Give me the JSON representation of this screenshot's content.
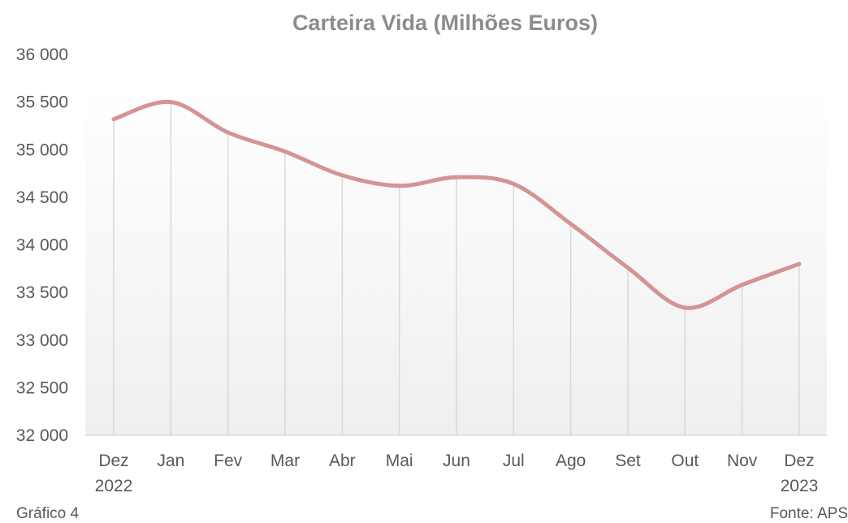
{
  "chart_data": {
    "type": "line",
    "title": "Carteira Vida (Milhões Euros)",
    "xlabel": "",
    "ylabel": "",
    "categories": [
      [
        "Dez",
        "2022"
      ],
      [
        "Jan"
      ],
      [
        "Fev"
      ],
      [
        "Mar"
      ],
      [
        "Abr"
      ],
      [
        "Mai"
      ],
      [
        "Jun"
      ],
      [
        "Jul"
      ],
      [
        "Ago"
      ],
      [
        "Set"
      ],
      [
        "Out"
      ],
      [
        "Nov"
      ],
      [
        "Dez",
        "2023"
      ]
    ],
    "series": [
      {
        "name": "Carteira Vida",
        "values": [
          35320,
          35500,
          35180,
          34980,
          34730,
          34620,
          34710,
          34640,
          34220,
          33760,
          33340,
          33580,
          33800
        ]
      }
    ],
    "ylim": [
      32000,
      36000
    ],
    "yticks": [
      32000,
      32500,
      33000,
      33500,
      34000,
      34500,
      35000,
      35500,
      36000
    ],
    "ytick_labels": [
      "32 000",
      "32 500",
      "33 000",
      "33 500",
      "34 000",
      "34 500",
      "35 000",
      "35 500",
      "36 000"
    ],
    "grid": "vertical drop lines",
    "colors": {
      "line": "#d49494",
      "dropline": "#d9d9d9",
      "axis": "#d9d9d9",
      "title": "#8c8c8c",
      "text": "#595959",
      "plot_bg_top": "#ffffff",
      "plot_bg_bottom": "#efefef"
    }
  },
  "footer": {
    "figure_label": "Gráfico 4",
    "source": "Fonte: APS"
  }
}
